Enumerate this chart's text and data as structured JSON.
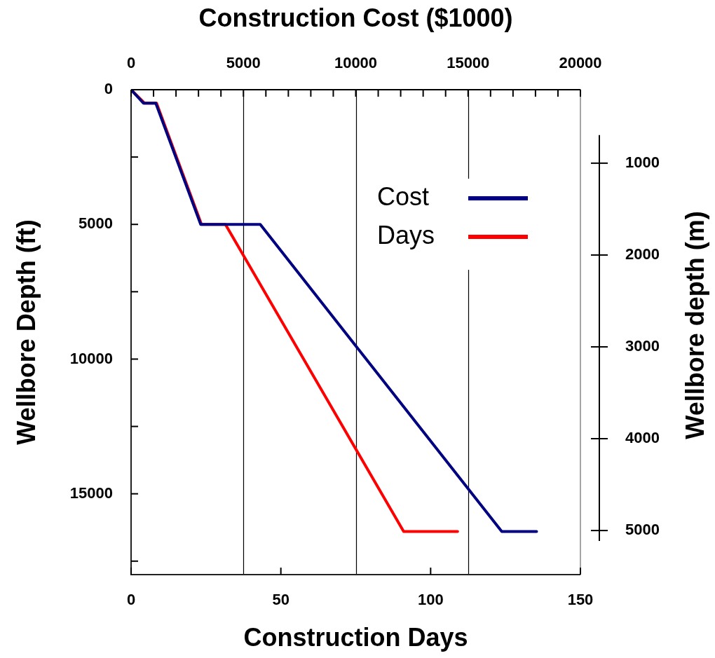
{
  "chart_data": {
    "type": "line",
    "xlabel": "Construction Days",
    "x2label": "Construction Cost ($1000)",
    "ylabel": "Wellbore Depth (ft)",
    "y2label": "Wellbore depth (m)",
    "xlim": [
      0,
      150
    ],
    "xticks": [
      0,
      50,
      100,
      150
    ],
    "x2lim": [
      0,
      20000
    ],
    "x2ticks": [
      0,
      {
        "value": 1000,
        "label": null
      },
      {
        "value": 2000,
        "label": null
      },
      {
        "value": 3000,
        "label": null
      },
      {
        "value": 4000,
        "label": null
      },
      5000,
      {
        "value": 6000,
        "label": null
      },
      {
        "value": 7000,
        "label": null
      },
      {
        "value": 8000,
        "label": null
      },
      {
        "value": 9000,
        "label": null
      },
      10000,
      {
        "value": 11000,
        "label": null
      },
      {
        "value": 12000,
        "label": null
      },
      {
        "value": 13000,
        "label": null
      },
      {
        "value": 14000,
        "label": null
      },
      15000,
      {
        "value": 16000,
        "label": null
      },
      {
        "value": 17000,
        "label": null
      },
      {
        "value": 18000,
        "label": null
      },
      {
        "value": 19000,
        "label": null
      },
      20000
    ],
    "ylim": [
      18000,
      0
    ],
    "yticks": [
      0,
      {
        "value": 2500,
        "label": null
      },
      5000,
      {
        "value": 7500,
        "label": null
      },
      10000,
      {
        "value": 12500,
        "label": null
      },
      15000,
      {
        "value": 17500,
        "label": null
      }
    ],
    "y2lim": [
      5480,
      200
    ],
    "y2ticks": [
      1000,
      2000,
      3000,
      4000,
      5000
    ],
    "grid": "x",
    "legend": "top right",
    "marker": "none",
    "line_style": "solid",
    "series": [
      {
        "name": "Cost",
        "color": "#000080",
        "axis": "x2",
        "x": [
          0,
          550,
          1100,
          3100,
          5750,
          16500,
          18050
        ],
        "values": [
          0,
          500,
          500,
          5000,
          5000,
          16400,
          16400
        ]
      },
      {
        "name": "Days",
        "color": "#ff0000",
        "x": [
          0,
          4.5,
          8.5,
          23.5,
          31.5,
          91,
          109
        ],
        "values": [
          0,
          500,
          500,
          5000,
          5000,
          16400,
          16400
        ]
      }
    ]
  }
}
